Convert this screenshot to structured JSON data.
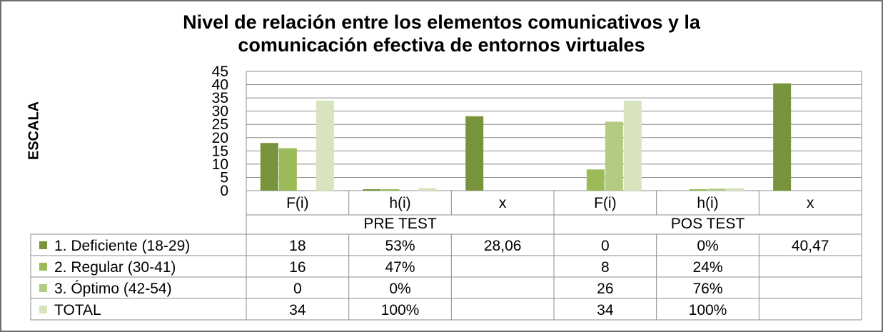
{
  "chart_data": {
    "type": "bar",
    "title": "Nivel de relación entre los elementos comunicativos y la comunicación efectiva de entornos virtuales",
    "title_lines": [
      "Nivel de relación entre los elementos comunicativos y la",
      "comunicación efectiva de entornos virtuales"
    ],
    "ylabel": "ESCALA",
    "xlabel": "",
    "ylim": [
      0,
      45
    ],
    "yticks": [
      0,
      5,
      10,
      15,
      20,
      25,
      30,
      35,
      40,
      45
    ],
    "grid": true,
    "legend": "table-left",
    "groups": [
      {
        "label": "PRE TEST",
        "categories": [
          "F(i)",
          "h(i)",
          "x"
        ]
      },
      {
        "label": "POS TEST",
        "categories": [
          "F(i)",
          "h(i)",
          "x"
        ]
      }
    ],
    "categories": [
      "F(i)",
      "h(i)",
      "x",
      "F(i)",
      "h(i)",
      "x"
    ],
    "series": [
      {
        "name": "1. Deficiente (18-29)",
        "color": "#77933c",
        "values": [
          18,
          0.53,
          28.06,
          0,
          0,
          40.47
        ],
        "labels": [
          "18",
          "53%",
          "28,06",
          "0",
          "0%",
          "40,47"
        ]
      },
      {
        "name": "2. Regular (30-41)",
        "color": "#9bbb59",
        "values": [
          16,
          0.47,
          null,
          8,
          0.24,
          null
        ],
        "labels": [
          "16",
          "47%",
          "",
          "8",
          "24%",
          ""
        ]
      },
      {
        "name": "3. Óptimo (42-54)",
        "color": "#b3cc82",
        "values": [
          0,
          0,
          null,
          26,
          0.76,
          null
        ],
        "labels": [
          "0",
          "0%",
          "",
          "26",
          "76%",
          ""
        ]
      },
      {
        "name": "TOTAL",
        "color": "#d7e4bd",
        "values": [
          34,
          1,
          null,
          34,
          1,
          null
        ],
        "labels": [
          "34",
          "100%",
          "",
          "34",
          "100%",
          ""
        ]
      }
    ]
  }
}
